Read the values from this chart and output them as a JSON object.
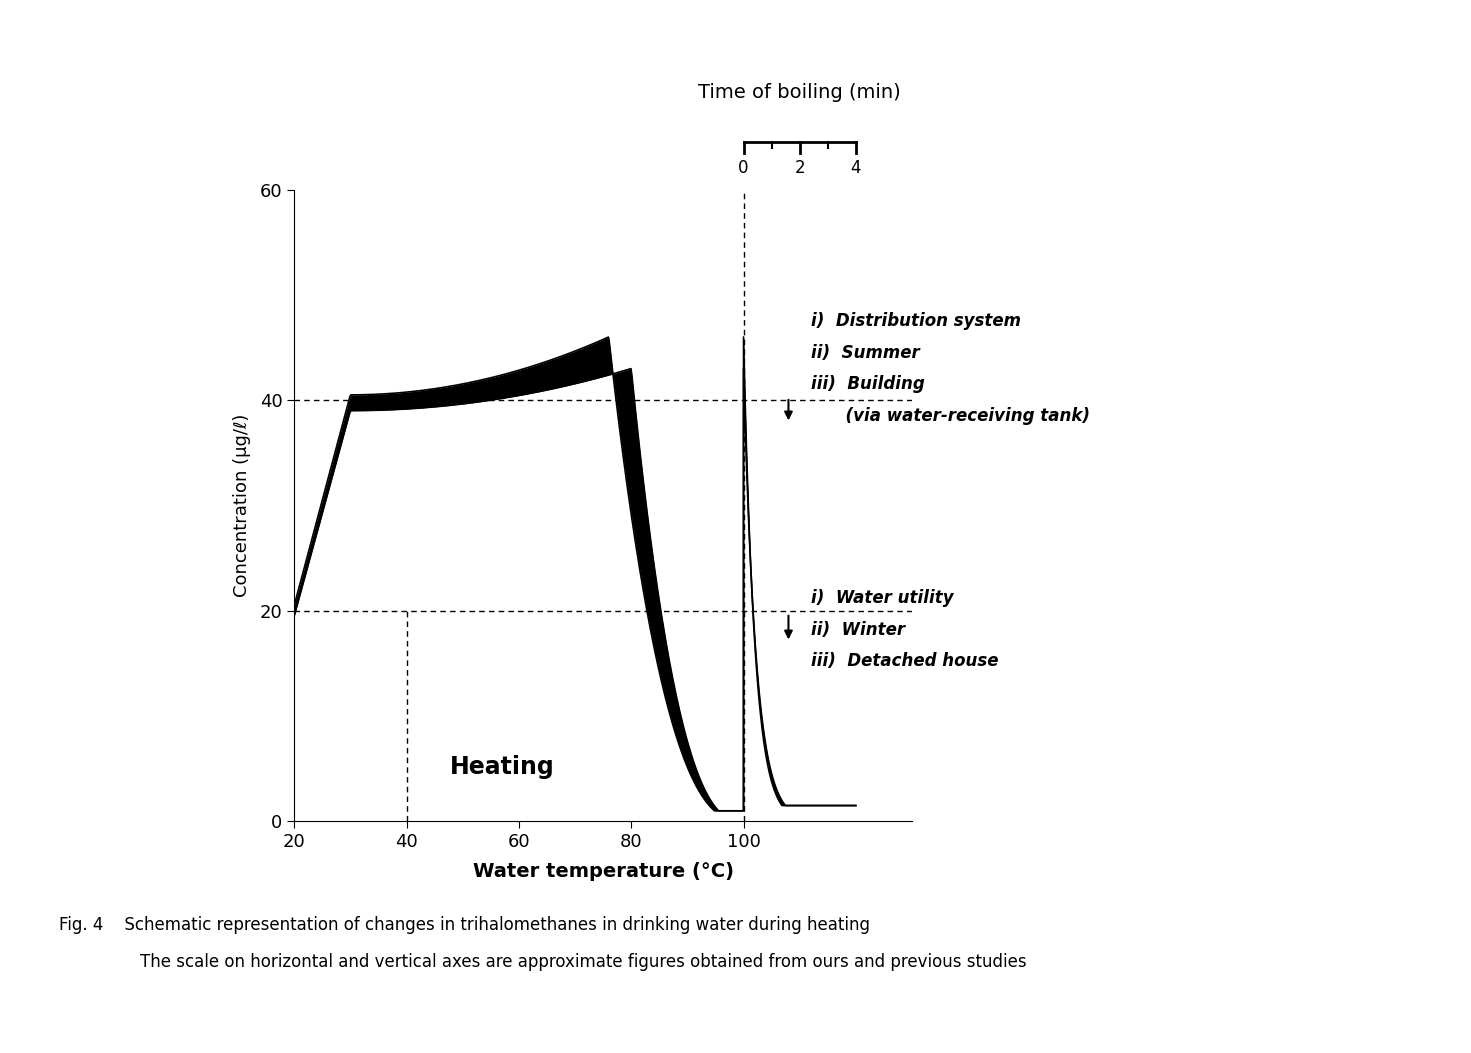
{
  "xlabel": "Water temperature (°C)",
  "ylabel": "Concentration (μg/ℓ)",
  "top_xlabel": "Time of boiling (min)",
  "xlim": [
    20,
    130
  ],
  "ylim": [
    0,
    60
  ],
  "xticks": [
    20,
    40,
    60,
    80,
    100
  ],
  "yticks": [
    0,
    20,
    40,
    60
  ],
  "heating_label": "Heating",
  "annotation_upper_text": [
    "i)  Distribution system",
    "ii)  Summer",
    "iii)  Building",
    "      (via water-receiving tank)"
  ],
  "annotation_lower_text": [
    "i)  Water utility",
    "ii)  Winter",
    "iii)  Detached house"
  ],
  "fig_caption_1": "Fig. 4    Schematic representation of changes in trihalomethanes in drinking water during heating",
  "fig_caption_2": "The scale on horizontal and vertical axes are approximate figures obtained from ours and previous studies",
  "background_color": "#ffffff"
}
